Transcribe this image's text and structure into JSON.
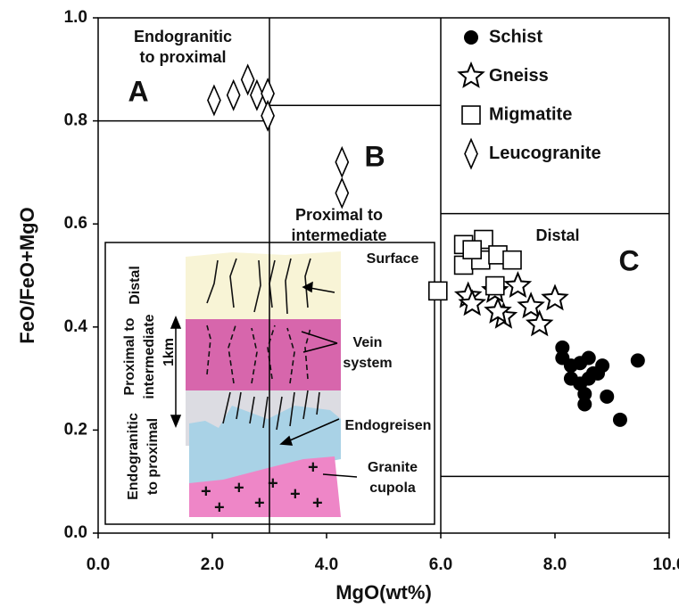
{
  "chart_data": {
    "type": "scatter",
    "xlabel": "MgO(wt%)",
    "ylabel": "FeO/FeO+MgO",
    "xlim": [
      0,
      10
    ],
    "ylim": [
      0,
      1
    ],
    "xticks": [
      {
        "value": 0,
        "label": "0.0"
      },
      {
        "value": 2,
        "label": "2.0"
      },
      {
        "value": 4,
        "label": "4.0"
      },
      {
        "value": 6,
        "label": "6.0"
      },
      {
        "value": 8,
        "label": "8.0"
      },
      {
        "value": 10,
        "label": "10.0"
      }
    ],
    "yticks": [
      {
        "value": 0,
        "label": "0.0"
      },
      {
        "value": 0.2,
        "label": "0.2"
      },
      {
        "value": 0.4,
        "label": "0.4"
      },
      {
        "value": 0.6,
        "label": "0.6"
      },
      {
        "value": 0.8,
        "label": "0.8"
      },
      {
        "value": 1,
        "label": "1.0"
      }
    ],
    "series": [
      {
        "name": "Schist",
        "marker": "circle",
        "color": "#000000",
        "x": [
          8.13,
          8.13,
          8.28,
          8.44,
          8.59,
          8.67,
          8.28,
          8.44,
          8.59,
          8.75,
          8.52,
          8.91,
          8.52,
          9.14,
          9.45,
          8.83
        ],
        "y": [
          0.36,
          0.34,
          0.325,
          0.33,
          0.34,
          0.31,
          0.3,
          0.29,
          0.3,
          0.31,
          0.27,
          0.265,
          0.25,
          0.22,
          0.335,
          0.325
        ]
      },
      {
        "name": "Gneiss",
        "marker": "star",
        "color": "#000000",
        "x": [
          6.48,
          6.95,
          7.35,
          8.0,
          6.55,
          7.1,
          7.58,
          7.73,
          7.0
        ],
        "y": [
          0.46,
          0.47,
          0.48,
          0.455,
          0.445,
          0.42,
          0.44,
          0.405,
          0.43
        ]
      },
      {
        "name": "Migmatite",
        "marker": "square",
        "color": "#000000",
        "x": [
          6.4,
          6.75,
          6.4,
          6.7,
          7.0,
          7.25,
          6.95,
          6.55,
          5.95
        ],
        "y": [
          0.56,
          0.57,
          0.52,
          0.53,
          0.54,
          0.53,
          0.48,
          0.55,
          0.47
        ]
      },
      {
        "name": "Leucogranite",
        "marker": "diamond",
        "color": "#000000",
        "x": [
          2.03,
          2.37,
          2.62,
          2.78,
          2.97,
          2.97,
          4.27,
          4.27
        ],
        "y": [
          0.84,
          0.85,
          0.88,
          0.85,
          0.853,
          0.81,
          0.72,
          0.66
        ]
      }
    ],
    "region_lines": [
      {
        "x": [
          3,
          3
        ],
        "y": [
          0,
          1
        ]
      },
      {
        "x": [
          0,
          3
        ],
        "y": [
          0.8,
          0.8
        ]
      },
      {
        "x": [
          3,
          6
        ],
        "y": [
          0.83,
          0.83
        ]
      },
      {
        "x": [
          6,
          6
        ],
        "y": [
          0,
          1
        ]
      },
      {
        "x": [
          6,
          10
        ],
        "y": [
          0.62,
          0.62
        ]
      },
      {
        "x": [
          6,
          10
        ],
        "y": [
          0.11,
          0.11
        ]
      }
    ],
    "region_labels": [
      "Endogranitic",
      "to proximal",
      "A",
      "B",
      "Proximal to",
      "intermediate",
      "C",
      "Distal"
    ]
  },
  "inset": {
    "labels": [
      "Surface",
      "Vein",
      "system",
      "Endogreisen",
      "Granite",
      "cupola",
      "Distal",
      "Proximal to",
      "intermediate",
      "1km",
      "Endogranitic",
      "to proximal"
    ]
  }
}
